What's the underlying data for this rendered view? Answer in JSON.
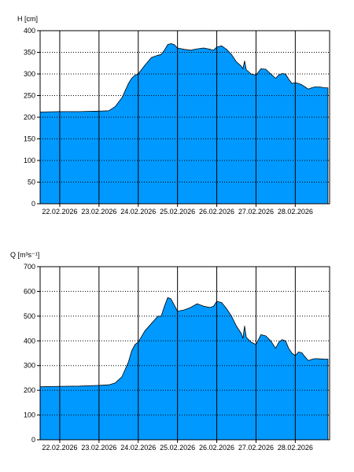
{
  "chart_data": [
    {
      "type": "area",
      "ylabel": "H [cm]",
      "ylim": [
        0,
        400
      ],
      "yticks": [
        0,
        50,
        100,
        150,
        200,
        250,
        300,
        350,
        400
      ],
      "xlim": [
        "21.02.2026 12:00",
        "28.02.2026 21:00"
      ],
      "xtick_labels": [
        "22.02.2026",
        "23.02.2026",
        "24.02.2026",
        "25.02.2026",
        "26.02.2026",
        "27.02.2026",
        "28.02.2026"
      ],
      "grid": true,
      "fill_color": "#0099ff",
      "series": [
        {
          "x": [
            "21.02.2026 12:00",
            "22.02.2026 00:00",
            "22.02.2026 12:00",
            "23.02.2026 00:00",
            "23.02.2026 06:00",
            "23.02.2026 10:00",
            "23.02.2026 14:00",
            "23.02.2026 18:00",
            "23.02.2026 20:00",
            "23.02.2026 22:00",
            "24.02.2026 00:00",
            "24.02.2026 04:00",
            "24.02.2026 08:00",
            "24.02.2026 12:00",
            "24.02.2026 14:00",
            "24.02.2026 16:00",
            "24.02.2026 18:00",
            "24.02.2026 20:00",
            "24.02.2026 22:00",
            "25.02.2026 00:00",
            "25.02.2026 04:00",
            "25.02.2026 08:00",
            "25.02.2026 12:00",
            "25.02.2026 16:00",
            "25.02.2026 20:00",
            "25.02.2026 22:00",
            "26.02.2026 00:00",
            "26.02.2026 03:00",
            "26.02.2026 06:00",
            "26.02.2026 09:00",
            "26.02.2026 12:00",
            "26.02.2026 15:00",
            "26.02.2026 16:00",
            "26.02.2026 17:00",
            "26.02.2026 18:00",
            "26.02.2026 21:00",
            "27.02.2026 00:00",
            "27.02.2026 03:00",
            "27.02.2026 06:00",
            "27.02.2026 09:00",
            "27.02.2026 12:00",
            "27.02.2026 14:00",
            "27.02.2026 16:00",
            "27.02.2026 18:00",
            "27.02.2026 20:00",
            "27.02.2026 22:00",
            "28.02.2026 00:00",
            "28.02.2026 02:00",
            "28.02.2026 04:00",
            "28.02.2026 06:00",
            "28.02.2026 08:00",
            "28.02.2026 10:00",
            "28.02.2026 12:00",
            "28.02.2026 15:00",
            "28.02.2026 18:00",
            "28.02.2026 20:00"
          ],
          "y": [
            212,
            213,
            213,
            214,
            215,
            225,
            245,
            278,
            290,
            297,
            300,
            320,
            338,
            343,
            345,
            355,
            368,
            370,
            368,
            360,
            357,
            355,
            358,
            360,
            357,
            355,
            362,
            365,
            357,
            345,
            328,
            318,
            312,
            330,
            310,
            300,
            297,
            312,
            311,
            300,
            290,
            298,
            301,
            300,
            288,
            278,
            280,
            278,
            275,
            270,
            265,
            268,
            270,
            270,
            268,
            268
          ]
        }
      ]
    },
    {
      "type": "area",
      "ylabel": "Q [m³s⁻¹]",
      "ylim": [
        0,
        700
      ],
      "yticks": [
        0,
        100,
        200,
        300,
        400,
        500,
        600,
        700
      ],
      "xlim": [
        "21.02.2026 12:00",
        "28.02.2026 21:00"
      ],
      "xtick_labels": [
        "22.02.2026",
        "23.02.2026",
        "24.02.2026",
        "25.02.2026",
        "26.02.2026",
        "27.02.2026",
        "28.02.2026"
      ],
      "grid": true,
      "fill_color": "#0099ff",
      "series": [
        {
          "x": [
            "21.02.2026 12:00",
            "22.02.2026 00:00",
            "22.02.2026 12:00",
            "23.02.2026 00:00",
            "23.02.2026 06:00",
            "23.02.2026 10:00",
            "23.02.2026 14:00",
            "23.02.2026 18:00",
            "23.02.2026 20:00",
            "23.02.2026 22:00",
            "24.02.2026 00:00",
            "24.02.2026 04:00",
            "24.02.2026 08:00",
            "24.02.2026 12:00",
            "24.02.2026 14:00",
            "24.02.2026 16:00",
            "24.02.2026 18:00",
            "24.02.2026 20:00",
            "24.02.2026 22:00",
            "25.02.2026 00:00",
            "25.02.2026 04:00",
            "25.02.2026 08:00",
            "25.02.2026 12:00",
            "25.02.2026 16:00",
            "25.02.2026 20:00",
            "25.02.2026 22:00",
            "26.02.2026 00:00",
            "26.02.2026 03:00",
            "26.02.2026 06:00",
            "26.02.2026 09:00",
            "26.02.2026 12:00",
            "26.02.2026 15:00",
            "26.02.2026 16:00",
            "26.02.2026 17:00",
            "26.02.2026 18:00",
            "26.02.2026 21:00",
            "27.02.2026 00:00",
            "27.02.2026 03:00",
            "27.02.2026 06:00",
            "27.02.2026 09:00",
            "27.02.2026 12:00",
            "27.02.2026 14:00",
            "27.02.2026 16:00",
            "27.02.2026 18:00",
            "27.02.2026 20:00",
            "27.02.2026 22:00",
            "28.02.2026 00:00",
            "28.02.2026 02:00",
            "28.02.2026 04:00",
            "28.02.2026 06:00",
            "28.02.2026 08:00",
            "28.02.2026 10:00",
            "28.02.2026 12:00",
            "28.02.2026 15:00",
            "28.02.2026 18:00",
            "28.02.2026 20:00"
          ],
          "y": [
            214,
            216,
            217,
            220,
            222,
            230,
            255,
            315,
            360,
            385,
            395,
            440,
            470,
            500,
            500,
            540,
            575,
            570,
            545,
            520,
            525,
            535,
            550,
            540,
            535,
            540,
            560,
            555,
            530,
            500,
            460,
            430,
            410,
            460,
            415,
            395,
            385,
            425,
            420,
            400,
            370,
            395,
            405,
            400,
            370,
            350,
            340,
            355,
            352,
            335,
            320,
            325,
            328,
            327,
            326,
            326
          ]
        }
      ]
    }
  ]
}
